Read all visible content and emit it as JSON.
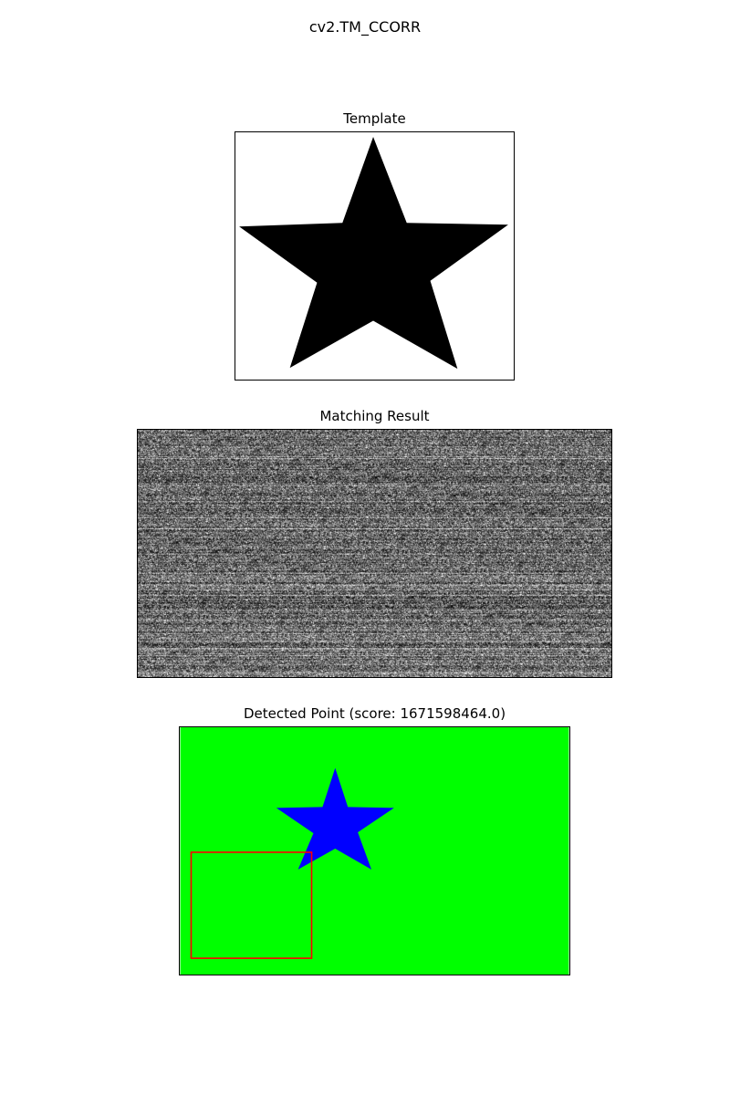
{
  "figure": {
    "suptitle": "cv2.TM_CCORR"
  },
  "panels": {
    "template": {
      "title": "Template",
      "content": "black-star-on-white"
    },
    "result": {
      "title": "Matching Result",
      "content": "grayscale-noise-correlation-map"
    },
    "detected": {
      "title": "Detected Point (score: 1671598464.0)",
      "content": "blue-star-on-green-with-red-detection-box"
    }
  },
  "colors": {
    "background": "#ffffff",
    "template_star": "#000000",
    "detected_bg": "#00ff00",
    "detected_star": "#0000ff",
    "detection_box": "#ff0000"
  }
}
